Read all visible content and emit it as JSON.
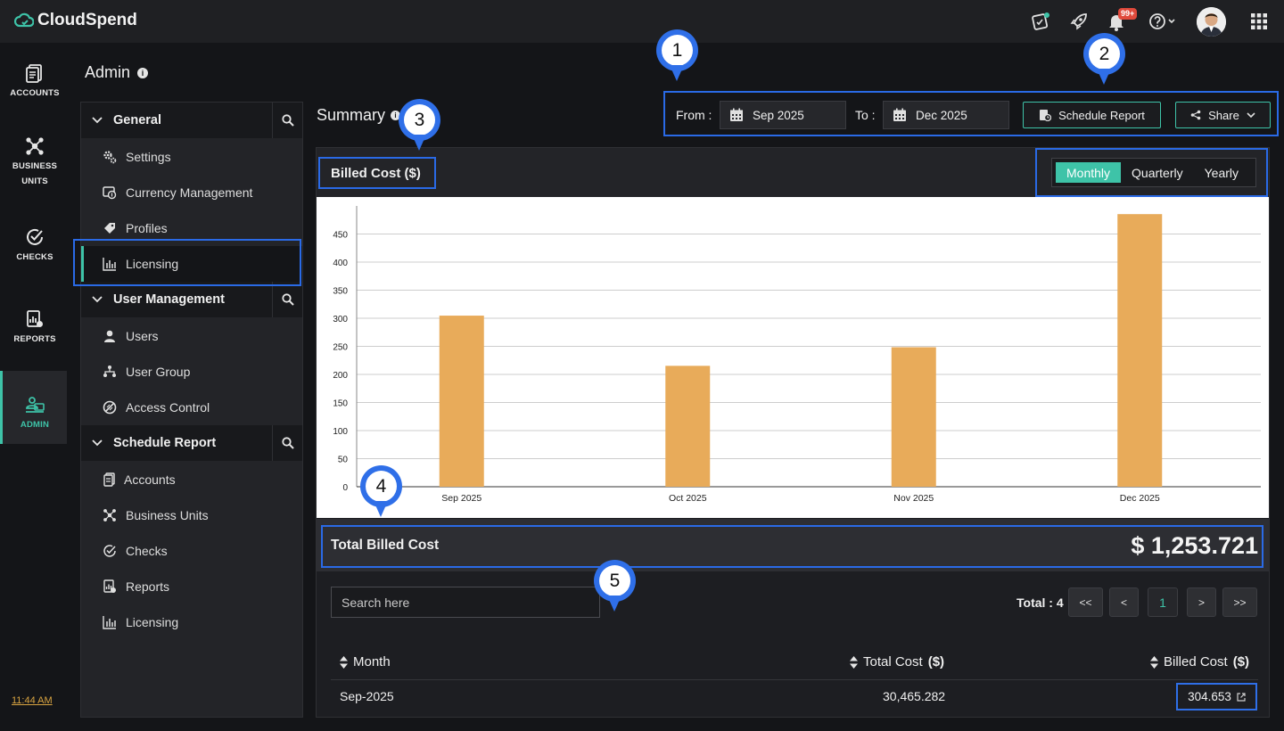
{
  "app": {
    "name": "CloudSpend",
    "notification_count": "99+"
  },
  "rail": {
    "items": [
      {
        "label": "ACCOUNTS",
        "icon": "accounts-icon"
      },
      {
        "label": "BUSINESS UNITS",
        "line1": "BUSINESS",
        "line2": "UNITS",
        "icon": "business-units-icon"
      },
      {
        "label": "CHECKS",
        "icon": "checks-icon"
      },
      {
        "label": "REPORTS",
        "icon": "reports-icon"
      },
      {
        "label": "ADMIN",
        "icon": "admin-icon",
        "active": true
      }
    ],
    "time": "11:44 AM"
  },
  "admin": {
    "title": "Admin"
  },
  "nav": {
    "groups": [
      {
        "label": "General",
        "items": [
          {
            "label": "Settings",
            "icon": "gears-icon"
          },
          {
            "label": "Currency Management",
            "icon": "currency-icon"
          },
          {
            "label": "Profiles",
            "icon": "tags-icon"
          },
          {
            "label": "Licensing",
            "icon": "bar-chart-icon",
            "active": true
          }
        ]
      },
      {
        "label": "User Management",
        "items": [
          {
            "label": "Users",
            "icon": "user-icon"
          },
          {
            "label": "User Group",
            "icon": "user-group-icon"
          },
          {
            "label": "Access Control",
            "icon": "access-control-icon"
          }
        ]
      },
      {
        "label": "Schedule Report",
        "items": [
          {
            "label": "Accounts",
            "icon": "accounts-icon"
          },
          {
            "label": "Business Units",
            "icon": "business-units-icon"
          },
          {
            "label": "Checks",
            "icon": "checks-icon"
          },
          {
            "label": "Reports",
            "icon": "reports-icon"
          },
          {
            "label": "Licensing",
            "icon": "bar-chart-icon"
          }
        ]
      }
    ]
  },
  "summary": {
    "title": "Summary",
    "from_label": "From :",
    "from_value": "Sep 2025",
    "to_label": "To :",
    "to_value": "Dec 2025",
    "schedule_button": "Schedule Report",
    "share_button": "Share"
  },
  "card": {
    "title": "Billed Cost ($)",
    "periods": [
      "Monthly",
      "Quarterly",
      "Yearly"
    ],
    "selected_period": "Monthly",
    "total_label": "Total Billed Cost",
    "total_value": "$ 1,253.721"
  },
  "chart_data": {
    "type": "bar",
    "categories": [
      "Sep 2025",
      "Oct 2025",
      "Nov 2025",
      "Dec 2025"
    ],
    "values": [
      304.653,
      215.3,
      248.4,
      485.4
    ],
    "yticks": [
      0,
      50,
      100,
      150,
      200,
      250,
      300,
      350,
      400,
      450
    ],
    "ylim": [
      0,
      500
    ],
    "grid": true,
    "bar_color": "#e8ab5a"
  },
  "table": {
    "search_placeholder": "Search here",
    "total_label": "Total : 4",
    "pager": [
      "<<",
      "<",
      "1",
      ">",
      ">>"
    ],
    "columns": [
      {
        "label": "Month",
        "unit": ""
      },
      {
        "label": "Total Cost",
        "unit": "($)"
      },
      {
        "label": "Billed Cost",
        "unit": "($)"
      }
    ],
    "rows": [
      {
        "month": "Sep-2025",
        "total_cost": "30,465.282",
        "billed_cost": "304.653"
      }
    ]
  },
  "annotations": [
    "1",
    "2",
    "3",
    "4",
    "5"
  ],
  "colors": {
    "accent": "#3ec3a8",
    "highlight": "#2f6fe8",
    "bar": "#e8ab5a"
  }
}
